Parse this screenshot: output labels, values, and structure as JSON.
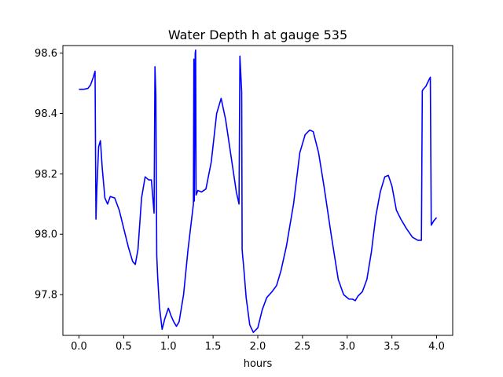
{
  "chart_data": {
    "type": "line",
    "title": "Water Depth h at gauge 535",
    "xlabel": "hours",
    "ylabel": "",
    "xlim": [
      -0.18,
      4.18
    ],
    "ylim": [
      97.665,
      98.625
    ],
    "grid": false,
    "x_ticks": [
      0.0,
      0.5,
      1.0,
      1.5,
      2.0,
      2.5,
      3.0,
      3.5,
      4.0
    ],
    "x_tick_labels": [
      "0.0",
      "0.5",
      "1.0",
      "1.5",
      "2.0",
      "2.5",
      "3.0",
      "3.5",
      "4.0"
    ],
    "y_ticks": [
      97.8,
      98.0,
      98.2,
      98.4,
      98.6
    ],
    "y_tick_labels": [
      "97.8",
      "98.0",
      "98.2",
      "98.4",
      "98.6"
    ],
    "series": [
      {
        "color": "#0000ff",
        "x": [
          0.0,
          0.05,
          0.1,
          0.13,
          0.16,
          0.18,
          0.19,
          0.2,
          0.22,
          0.24,
          0.26,
          0.29,
          0.32,
          0.35,
          0.4,
          0.45,
          0.5,
          0.55,
          0.6,
          0.63,
          0.66,
          0.7,
          0.74,
          0.78,
          0.81,
          0.84,
          0.85,
          0.86,
          0.87,
          0.88,
          0.9,
          0.93,
          0.96,
          1.0,
          1.03,
          1.06,
          1.09,
          1.12,
          1.17,
          1.22,
          1.26,
          1.28,
          1.285,
          1.29,
          1.3,
          1.305,
          1.31,
          1.33,
          1.37,
          1.42,
          1.48,
          1.54,
          1.59,
          1.64,
          1.7,
          1.76,
          1.79,
          1.8,
          1.82,
          1.825,
          1.83,
          1.84,
          1.87,
          1.91,
          1.95,
          2.0,
          2.05,
          2.1,
          2.16,
          2.21,
          2.26,
          2.32,
          2.4,
          2.47,
          2.53,
          2.58,
          2.62,
          2.68,
          2.74,
          2.82,
          2.9,
          2.96,
          3.02,
          3.06,
          3.09,
          3.12,
          3.17,
          3.22,
          3.27,
          3.32,
          3.37,
          3.42,
          3.46,
          3.5,
          3.55,
          3.6,
          3.66,
          3.73,
          3.79,
          3.83,
          3.84,
          3.85,
          3.88,
          3.92,
          3.93,
          3.94,
          3.97,
          4.0
        ],
        "y": [
          98.48,
          98.48,
          98.483,
          98.495,
          98.52,
          98.54,
          98.05,
          98.15,
          98.29,
          98.31,
          98.22,
          98.12,
          98.1,
          98.125,
          98.12,
          98.08,
          98.02,
          97.96,
          97.91,
          97.9,
          97.95,
          98.12,
          98.19,
          98.18,
          98.18,
          98.07,
          98.555,
          98.46,
          97.93,
          97.86,
          97.76,
          97.685,
          97.72,
          97.755,
          97.73,
          97.71,
          97.695,
          97.71,
          97.8,
          97.95,
          98.05,
          98.1,
          98.58,
          98.11,
          98.6,
          98.61,
          98.13,
          98.145,
          98.14,
          98.15,
          98.24,
          98.4,
          98.45,
          98.38,
          98.26,
          98.14,
          98.1,
          98.59,
          98.47,
          97.95,
          97.93,
          97.9,
          97.79,
          97.7,
          97.675,
          97.69,
          97.75,
          97.79,
          97.81,
          97.83,
          97.88,
          97.96,
          98.1,
          98.27,
          98.33,
          98.345,
          98.34,
          98.27,
          98.16,
          98.0,
          97.85,
          97.8,
          97.785,
          97.785,
          97.78,
          97.795,
          97.81,
          97.85,
          97.94,
          98.06,
          98.14,
          98.19,
          98.195,
          98.16,
          98.08,
          98.05,
          98.02,
          97.99,
          97.98,
          97.98,
          98.475,
          98.48,
          98.49,
          98.515,
          98.52,
          98.03,
          98.045,
          98.055
        ]
      }
    ]
  }
}
